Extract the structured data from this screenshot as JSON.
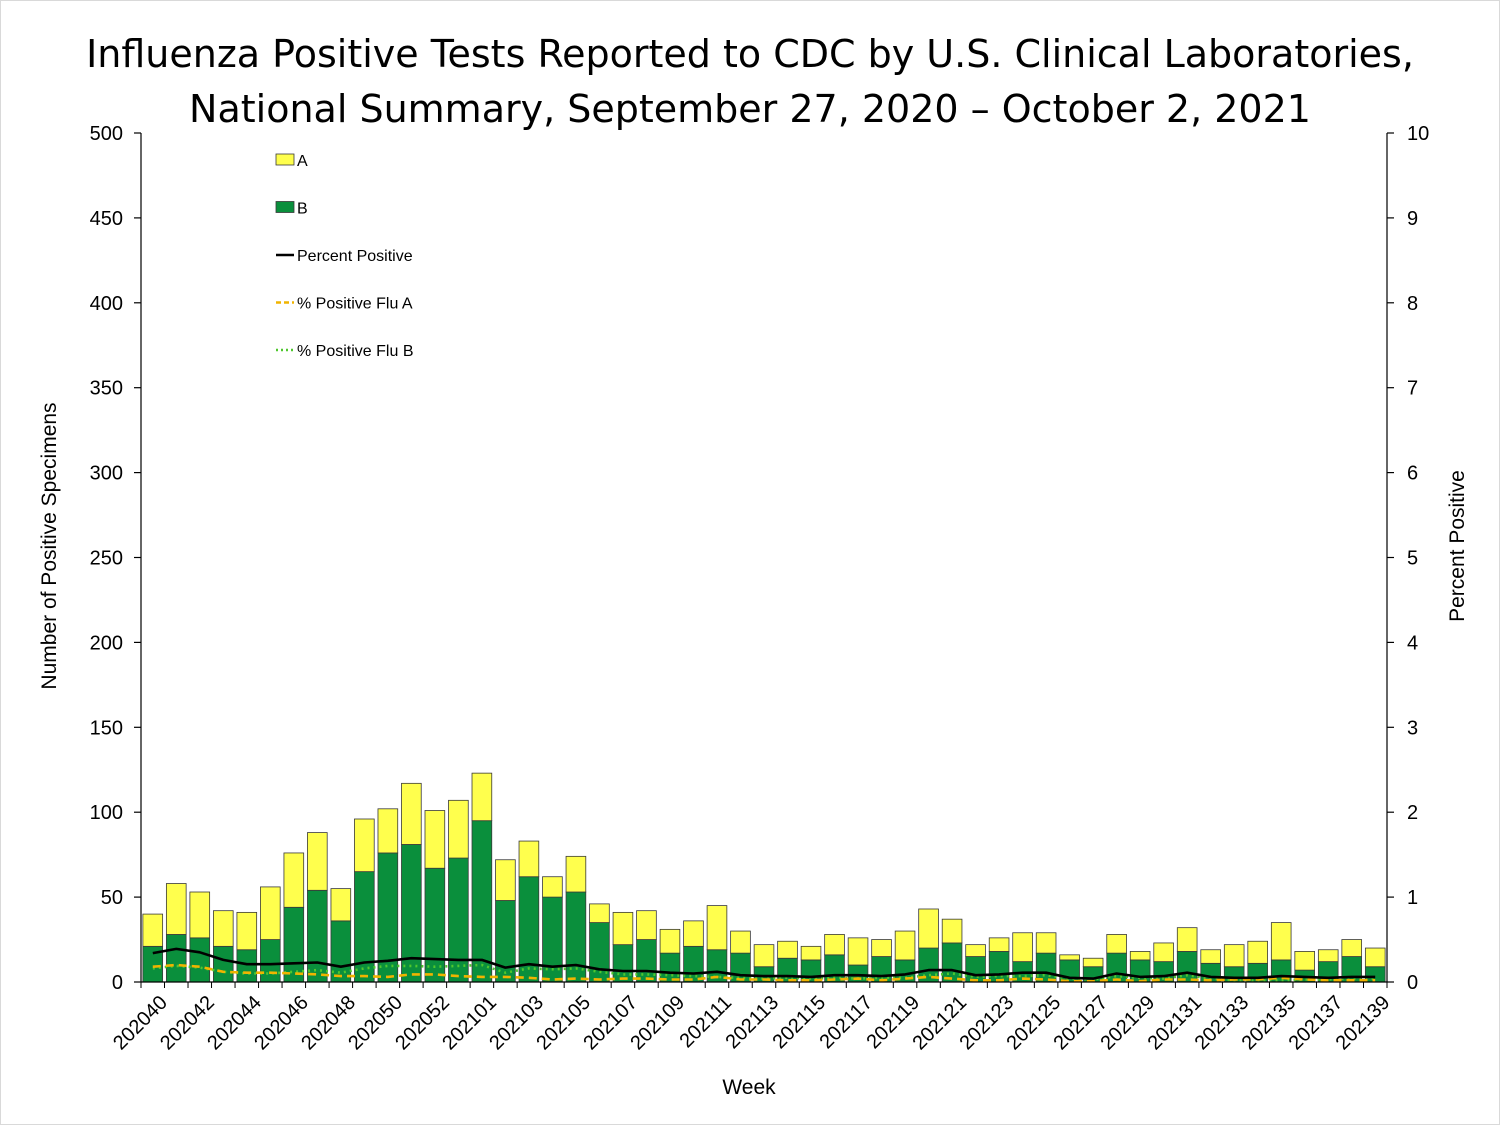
{
  "chart_data": {
    "type": "bar",
    "title": "Influenza Positive Tests Reported to CDC by U.S. Clinical Laboratories,",
    "subtitle": "National Summary, September 27, 2020 – October 2, 2021",
    "xlabel": "Week",
    "ylabel": "Number of Positive Specimens",
    "y2label": "Percent Positive",
    "ylim": [
      0,
      500
    ],
    "y2lim": [
      0,
      10
    ],
    "yticks": [
      0,
      50,
      100,
      150,
      200,
      250,
      300,
      350,
      400,
      450,
      500
    ],
    "y2ticks": [
      0,
      1,
      2,
      3,
      4,
      5,
      6,
      7,
      8,
      9,
      10
    ],
    "stacked": true,
    "grid": false,
    "legend_position": "top-left",
    "colors": {
      "A": "#ffff4d",
      "B": "#0a8f3c",
      "percent_positive": "#000000",
      "flu_a": "#f0b400",
      "flu_b": "#4fc72e"
    },
    "categories": [
      "202040",
      "202041",
      "202042",
      "202043",
      "202044",
      "202045",
      "202046",
      "202047",
      "202048",
      "202049",
      "202050",
      "202051",
      "202052",
      "202053",
      "202101",
      "202102",
      "202103",
      "202104",
      "202105",
      "202106",
      "202107",
      "202108",
      "202109",
      "202110",
      "202111",
      "202112",
      "202113",
      "202114",
      "202115",
      "202116",
      "202117",
      "202118",
      "202119",
      "202120",
      "202121",
      "202122",
      "202123",
      "202124",
      "202125",
      "202126",
      "202127",
      "202128",
      "202129",
      "202130",
      "202131",
      "202132",
      "202133",
      "202134",
      "202135",
      "202136",
      "202137",
      "202138",
      "202139"
    ],
    "tick_labels": [
      "202040",
      "202042",
      "202044",
      "202046",
      "202048",
      "202050",
      "202052",
      "202101",
      "202103",
      "202105",
      "202107",
      "202109",
      "202111",
      "202113",
      "202115",
      "202117",
      "202119",
      "202121",
      "202123",
      "202125",
      "202127",
      "202129",
      "202131",
      "202133",
      "202135",
      "202137",
      "202139"
    ],
    "series": [
      {
        "name": "B",
        "kind": "bar",
        "values": [
          21,
          28,
          26,
          21,
          19,
          25,
          44,
          54,
          36,
          65,
          76,
          81,
          67,
          73,
          95,
          48,
          62,
          50,
          53,
          35,
          22,
          25,
          17,
          21,
          19,
          17,
          9,
          14,
          13,
          16,
          10,
          15,
          13,
          20,
          23,
          15,
          18,
          12,
          17,
          13,
          9,
          17,
          13,
          12,
          18,
          11,
          9,
          11,
          13,
          7,
          12,
          15,
          9
        ]
      },
      {
        "name": "A",
        "kind": "bar",
        "values": [
          19,
          30,
          27,
          21,
          22,
          31,
          32,
          34,
          19,
          31,
          26,
          36,
          34,
          34,
          28,
          24,
          21,
          12,
          21,
          11,
          19,
          17,
          14,
          15,
          26,
          13,
          13,
          10,
          8,
          12,
          16,
          10,
          17,
          23,
          14,
          7,
          8,
          17,
          12,
          3,
          5,
          11,
          5,
          11,
          14,
          8,
          13,
          13,
          22,
          11,
          7,
          10,
          11
        ]
      },
      {
        "name": "Percent Positive",
        "kind": "line",
        "axis": "right",
        "values": [
          0.34,
          0.39,
          0.35,
          0.26,
          0.21,
          0.21,
          0.22,
          0.23,
          0.18,
          0.23,
          0.25,
          0.28,
          0.27,
          0.26,
          0.26,
          0.17,
          0.21,
          0.18,
          0.2,
          0.15,
          0.13,
          0.13,
          0.11,
          0.1,
          0.12,
          0.08,
          0.07,
          0.07,
          0.06,
          0.08,
          0.08,
          0.07,
          0.09,
          0.14,
          0.14,
          0.08,
          0.09,
          0.11,
          0.11,
          0.05,
          0.04,
          0.1,
          0.06,
          0.07,
          0.11,
          0.06,
          0.05,
          0.05,
          0.07,
          0.06,
          0.05,
          0.06,
          0.06
        ]
      },
      {
        "name": "% Positive Flu A",
        "kind": "line",
        "axis": "right",
        "values": [
          0.18,
          0.2,
          0.18,
          0.12,
          0.11,
          0.11,
          0.1,
          0.09,
          0.07,
          0.07,
          0.06,
          0.09,
          0.09,
          0.07,
          0.06,
          0.06,
          0.05,
          0.03,
          0.04,
          0.03,
          0.04,
          0.04,
          0.03,
          0.03,
          0.06,
          0.03,
          0.03,
          0.02,
          0.02,
          0.03,
          0.04,
          0.02,
          0.04,
          0.06,
          0.04,
          0.02,
          0.02,
          0.04,
          0.03,
          0.01,
          0.01,
          0.03,
          0.01,
          0.03,
          0.03,
          0.02,
          0.03,
          0.03,
          0.05,
          0.03,
          0.02,
          0.02,
          0.02
        ]
      },
      {
        "name": "% Positive Flu B",
        "kind": "line",
        "axis": "right",
        "values": [
          0.16,
          0.19,
          0.17,
          0.12,
          0.1,
          0.1,
          0.12,
          0.14,
          0.11,
          0.16,
          0.19,
          0.19,
          0.18,
          0.19,
          0.2,
          0.11,
          0.16,
          0.15,
          0.16,
          0.12,
          0.09,
          0.09,
          0.08,
          0.07,
          0.06,
          0.05,
          0.04,
          0.05,
          0.04,
          0.05,
          0.04,
          0.05,
          0.05,
          0.08,
          0.1,
          0.06,
          0.07,
          0.07,
          0.08,
          0.04,
          0.03,
          0.07,
          0.05,
          0.04,
          0.08,
          0.04,
          0.02,
          0.02,
          0.02,
          0.03,
          0.03,
          0.04,
          0.04
        ]
      }
    ]
  }
}
